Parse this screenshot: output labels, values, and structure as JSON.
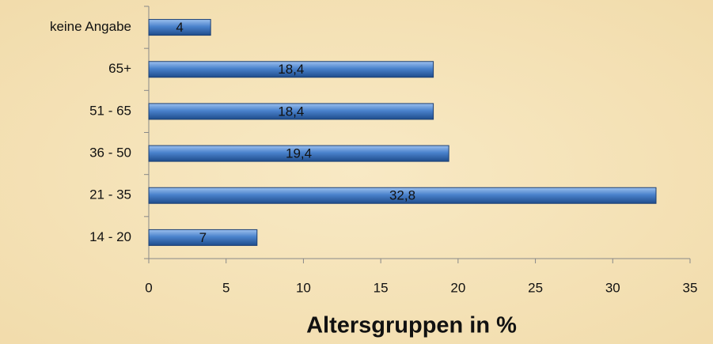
{
  "chart_data": {
    "type": "bar",
    "orientation": "horizontal",
    "title": "Altersgruppen in %",
    "categories": [
      "keine Angabe",
      "65+",
      "51 - 65",
      "36 - 50",
      "21 - 35",
      "14 - 20"
    ],
    "values": [
      4,
      18.4,
      18.4,
      19.4,
      32.8,
      7
    ],
    "value_labels": [
      "4",
      "18,4",
      "18,4",
      "19,4",
      "32,8",
      "7"
    ],
    "color": "#3f78c4",
    "xlim": [
      0,
      35
    ],
    "xticks": [
      0,
      5,
      10,
      15,
      20,
      25,
      30,
      35
    ]
  }
}
